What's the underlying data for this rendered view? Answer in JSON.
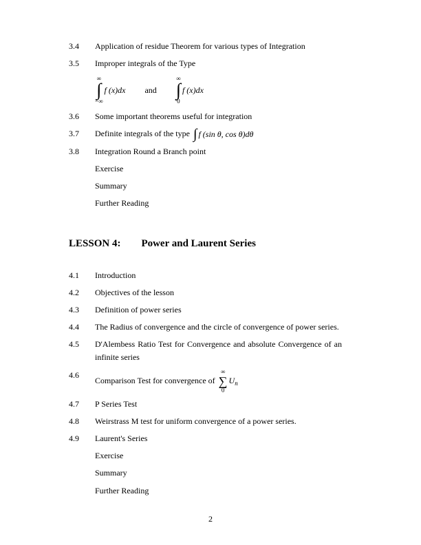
{
  "pageNumber": "2",
  "section3": {
    "items": [
      {
        "num": "3.4",
        "text": "Application of residue Theorem for various types of Integration"
      },
      {
        "num": "3.5",
        "text": "Improper integrals of the Type"
      },
      {
        "num": "3.6",
        "text": "Some important theorems useful for integration"
      },
      {
        "num": "3.7",
        "text": "Definite integrals of the type "
      },
      {
        "num": "3.8",
        "text": "Integration Round a Branch point"
      }
    ],
    "tail": [
      "Exercise",
      "Summary",
      "Further Reading"
    ],
    "integral1": {
      "upper": "∞",
      "lower": "−∞",
      "body": "f (x)dx"
    },
    "andWord": "and",
    "integral2": {
      "upper": "∞",
      "lower": "0",
      "body": "f (x)dx"
    },
    "inlineIntegral": {
      "body": "f (sin θ, cos θ)dθ"
    }
  },
  "lesson4": {
    "heading": "LESSON 4:  Power and Laurent Series",
    "items": [
      {
        "num": "4.1",
        "text": "Introduction"
      },
      {
        "num": "4.2",
        "text": "Objectives of the lesson"
      },
      {
        "num": "4.3",
        "text": "Definition of power series"
      },
      {
        "num": "4.4",
        "text": "The Radius of convergence and the circle of convergence of power series."
      },
      {
        "num": "4.5",
        "text": "D'Alembess Ratio Test for Convergence and absolute Convergence of an infinite series"
      },
      {
        "num": "4.6",
        "text": "Comparison Test for convergence of "
      },
      {
        "num": "4.7",
        "text": "P Series Test"
      },
      {
        "num": "4.8",
        "text": "Weirstrass M test for uniform convergence of a power series."
      },
      {
        "num": "4.9",
        "text": "Laurent's Series"
      }
    ],
    "sum": {
      "upper": "∞",
      "lower": "0",
      "term": "U",
      "sub": "n"
    },
    "tail": [
      "Exercise",
      "Summary",
      "Further Reading"
    ]
  }
}
